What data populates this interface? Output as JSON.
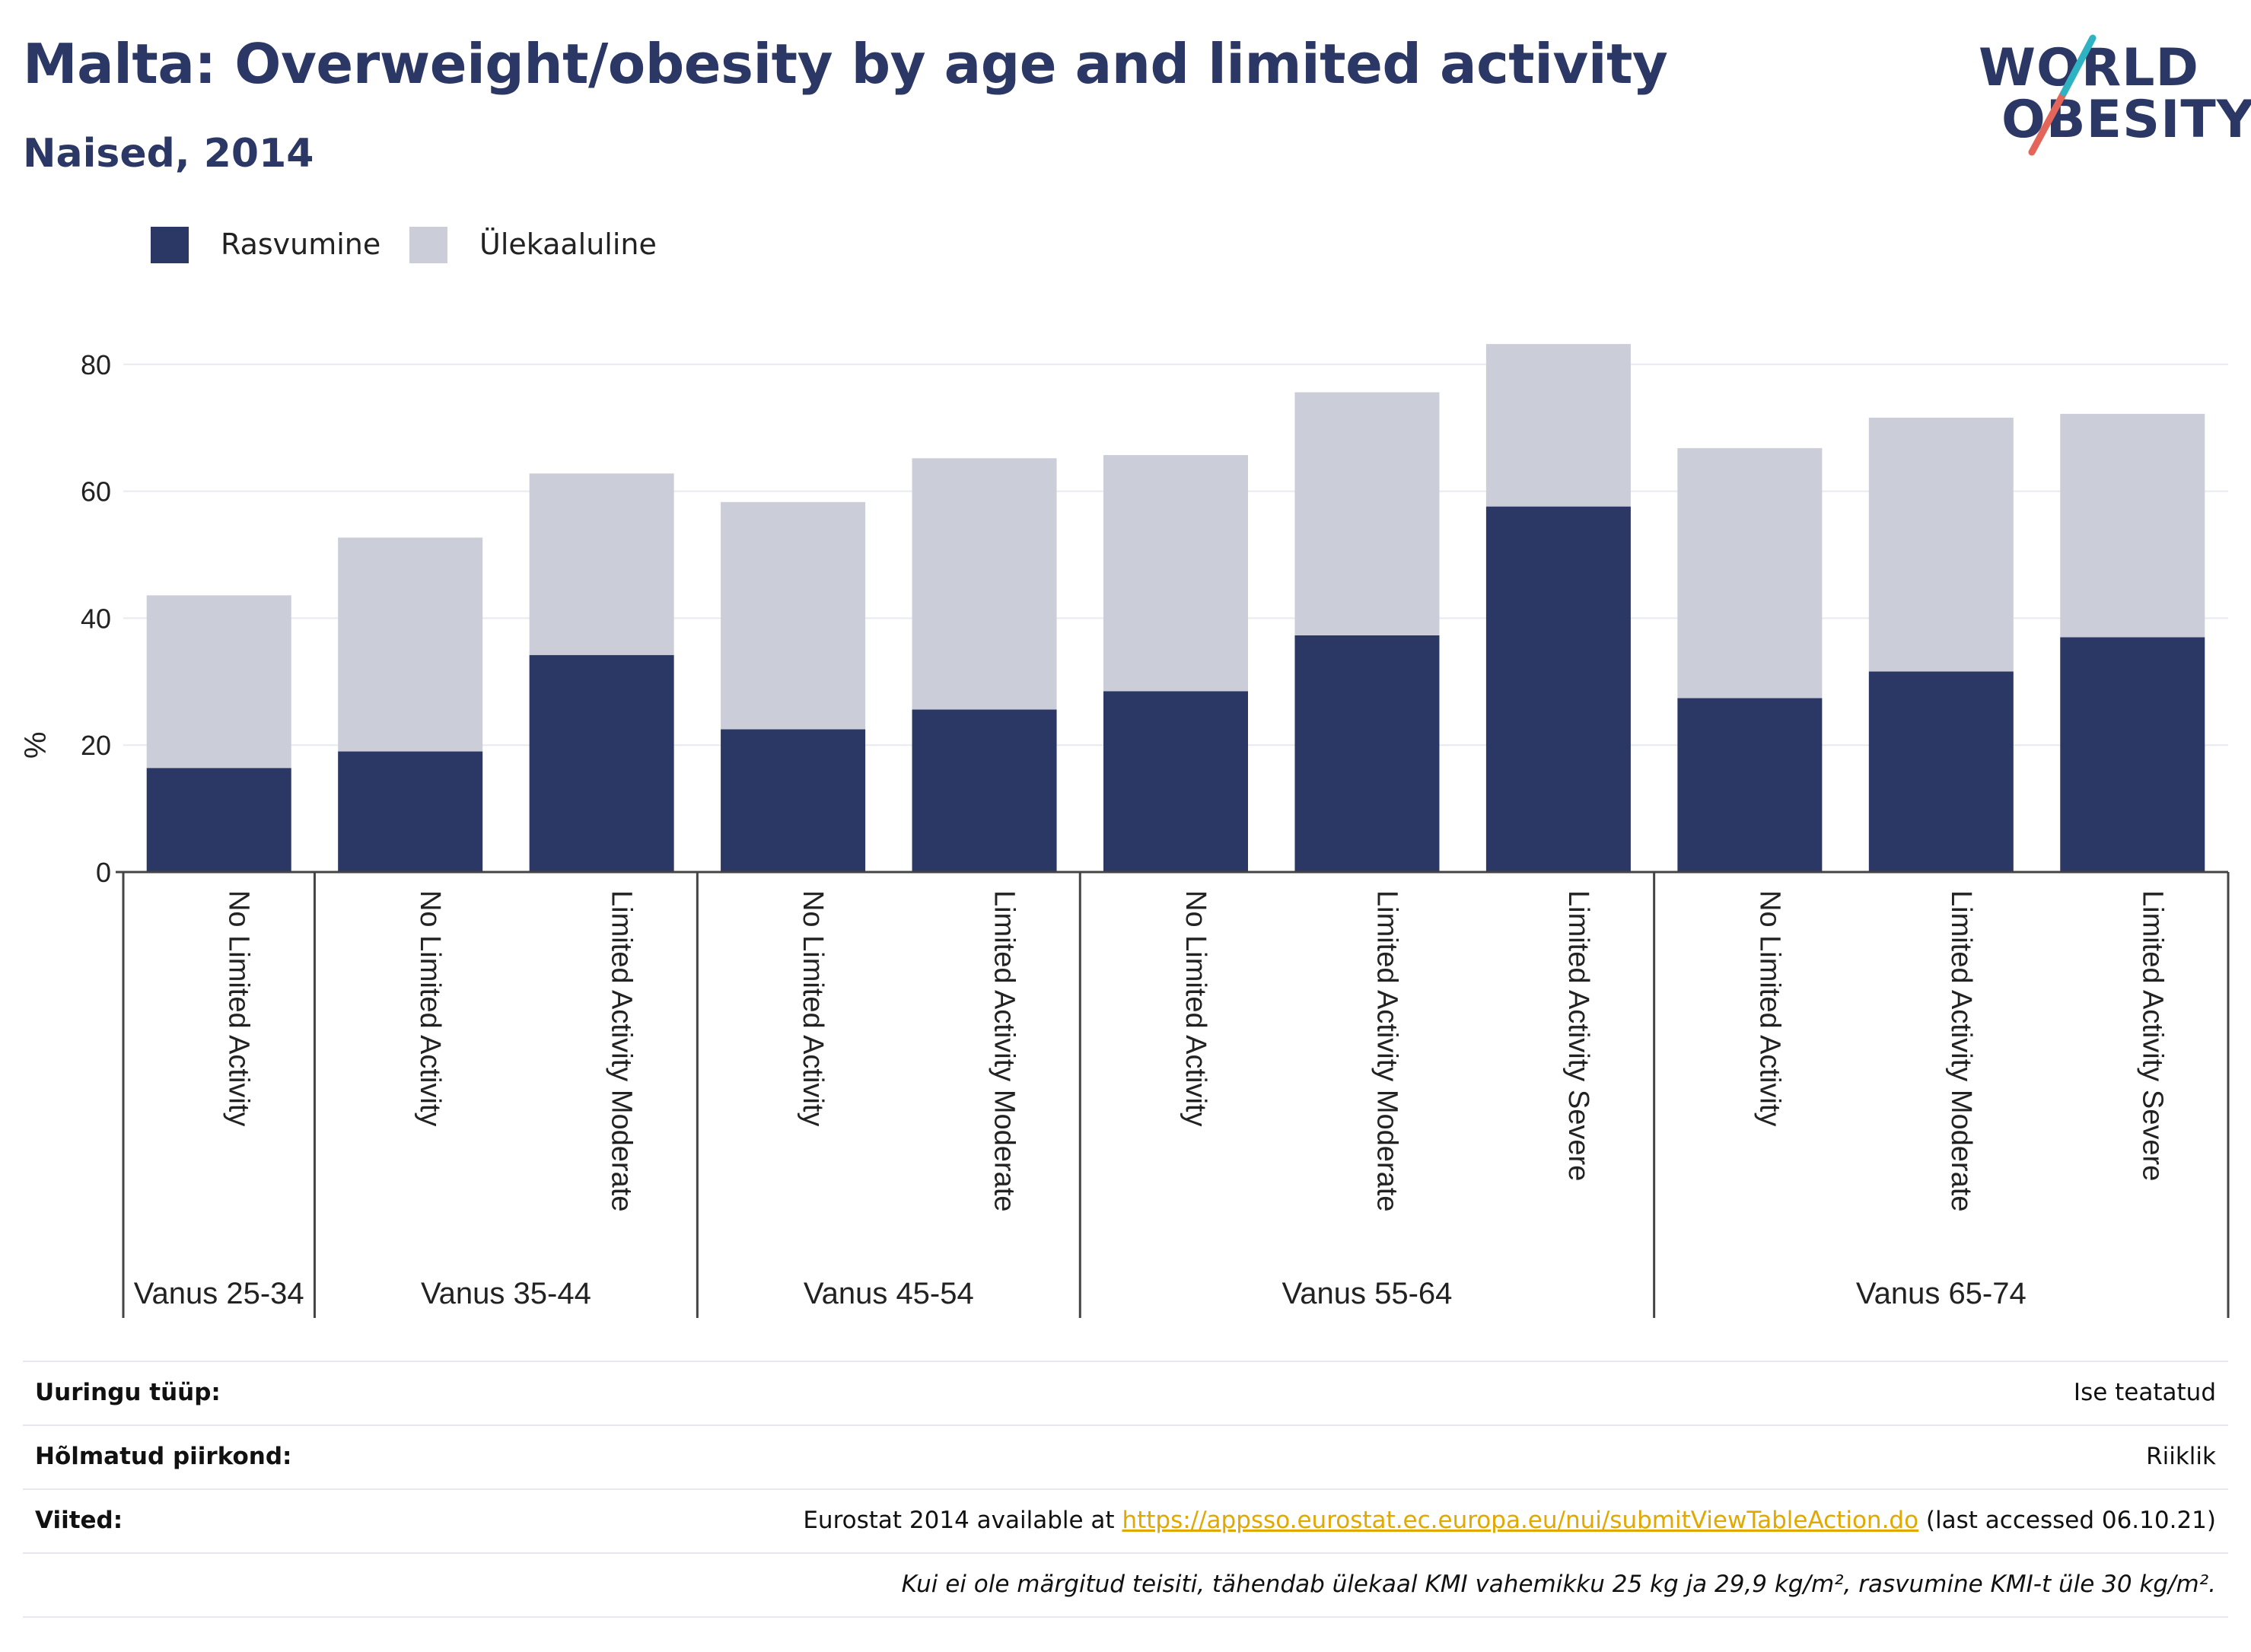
{
  "header": {
    "title": "Malta: Overweight/obesity by age and limited activity",
    "subtitle": "Naised, 2014"
  },
  "logo": {
    "line1": "WORLD",
    "line2": "OBESITY"
  },
  "colors": {
    "obesity": "#2b3764",
    "overweight": "#cbcdd9",
    "accent_red": "#e4655a",
    "accent_teal": "#2fb3c2",
    "link": "#e0a800"
  },
  "chart_data": {
    "type": "bar",
    "stacked": true,
    "ylabel": "%",
    "ylim": [
      0,
      90
    ],
    "yticks": [
      0,
      20,
      40,
      60,
      80
    ],
    "grid": true,
    "legend_position": "top-left",
    "categories": [
      "No Limited Activity",
      "No Limited Activity",
      "Limited Activity Moderate",
      "No Limited Activity",
      "Limited Activity Moderate",
      "No Limited Activity",
      "Limited Activity Moderate",
      "Limited Activity Severe",
      "No Limited Activity",
      "Limited Activity Moderate",
      "Limited Activity Severe"
    ],
    "groups": [
      {
        "label": "Vanus 25-34",
        "count": 1
      },
      {
        "label": "Vanus 35-44",
        "count": 2
      },
      {
        "label": "Vanus 45-54",
        "count": 2
      },
      {
        "label": "Vanus 55-64",
        "count": 3
      },
      {
        "label": "Vanus 65-74",
        "count": 3
      }
    ],
    "series": [
      {
        "name": "Rasvumine",
        "values": [
          16.4,
          19.0,
          34.2,
          22.5,
          25.6,
          28.5,
          37.3,
          57.6,
          27.4,
          31.6,
          37.0
        ]
      },
      {
        "name": "Ülekaaluline",
        "values": [
          27.2,
          33.7,
          28.6,
          35.8,
          39.6,
          37.2,
          38.3,
          25.6,
          39.4,
          40.0,
          35.2
        ]
      }
    ]
  },
  "meta": {
    "survey_type_label": "Uuringu tüüp:",
    "survey_type_value": "Ise teatatud",
    "region_label": "Hõlmatud piirkond:",
    "region_value": "Riiklik",
    "refs_label": "Viited:",
    "refs_prefix": "Eurostat 2014 available at ",
    "refs_link": "https://appsso.eurostat.ec.europa.eu/nui/submitViewTableAction.do",
    "refs_suffix": " (last accessed 06.10.21)",
    "note": "Kui ei ole märgitud teisiti, tähendab ülekaal KMI vahemikku 25 kg ja 29,9 kg/m², rasvumine KMI-t üle 30 kg/m²."
  }
}
